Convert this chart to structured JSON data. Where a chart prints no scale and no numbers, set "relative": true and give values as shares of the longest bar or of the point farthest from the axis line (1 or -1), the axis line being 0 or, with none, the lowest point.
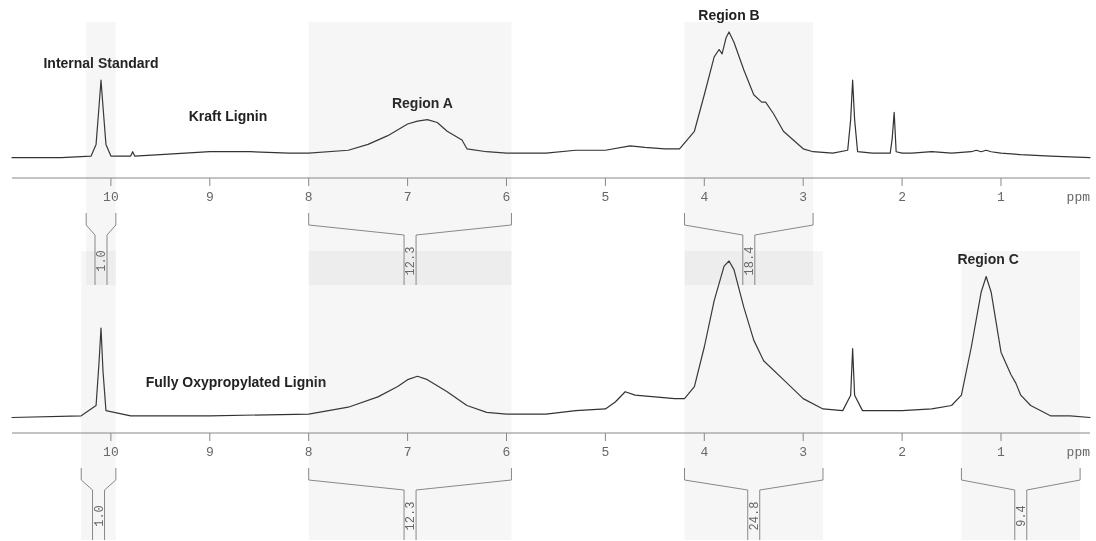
{
  "chart_data": [
    {
      "type": "line",
      "title": "Kraft Lignin",
      "xlabel": "ppm",
      "relative": true,
      "xlim": [
        11.0,
        0.1
      ],
      "xticks": [
        10,
        9,
        8,
        7,
        6,
        5,
        4,
        3,
        2,
        1
      ],
      "x": [
        11.0,
        10.5,
        10.2,
        10.15,
        10.12,
        10.1,
        10.08,
        10.05,
        10.0,
        9.8,
        9.78,
        9.76,
        9.5,
        9.0,
        8.6,
        8.2,
        8.0,
        7.6,
        7.4,
        7.2,
        7.0,
        6.9,
        6.8,
        6.7,
        6.6,
        6.45,
        6.4,
        6.2,
        6.0,
        5.6,
        5.3,
        5.0,
        4.75,
        4.6,
        4.4,
        4.25,
        4.1,
        4.0,
        3.9,
        3.85,
        3.82,
        3.78,
        3.75,
        3.7,
        3.6,
        3.5,
        3.42,
        3.38,
        3.3,
        3.2,
        3.0,
        2.9,
        2.7,
        2.55,
        2.52,
        2.5,
        2.48,
        2.45,
        2.3,
        2.12,
        2.1,
        2.08,
        2.06,
        2.0,
        1.9,
        1.7,
        1.5,
        1.3,
        1.25,
        1.2,
        1.15,
        1.1,
        1.0,
        0.8,
        0.5,
        0.1
      ],
      "series": [
        {
          "color": "#333333",
          "values": [
            0.14,
            0.14,
            0.15,
            0.23,
            0.49,
            0.67,
            0.49,
            0.23,
            0.15,
            0.15,
            0.18,
            0.15,
            0.16,
            0.18,
            0.18,
            0.17,
            0.17,
            0.19,
            0.23,
            0.29,
            0.37,
            0.39,
            0.4,
            0.38,
            0.32,
            0.26,
            0.2,
            0.18,
            0.17,
            0.17,
            0.19,
            0.19,
            0.22,
            0.21,
            0.2,
            0.2,
            0.32,
            0.57,
            0.83,
            0.88,
            0.85,
            0.96,
            1.0,
            0.93,
            0.74,
            0.57,
            0.52,
            0.52,
            0.44,
            0.32,
            0.2,
            0.18,
            0.17,
            0.19,
            0.4,
            0.67,
            0.4,
            0.18,
            0.17,
            0.17,
            0.27,
            0.45,
            0.18,
            0.17,
            0.17,
            0.18,
            0.17,
            0.18,
            0.19,
            0.18,
            0.19,
            0.18,
            0.17,
            0.16,
            0.15,
            0.14
          ]
        }
      ],
      "annotations": [
        {
          "text": "Internal Standard",
          "x": 10.1,
          "y": 0.67
        },
        {
          "text": "Region A",
          "x": 6.85,
          "y": 0.4
        },
        {
          "text": "Region B",
          "x": 3.75,
          "y": 1.0
        }
      ],
      "bands": [
        {
          "axis": "x",
          "from": 10.25,
          "to": 9.95,
          "label": "1.0",
          "color": "#888888"
        },
        {
          "axis": "x",
          "from": 8.0,
          "to": 5.95,
          "label": "12.3",
          "color": "#888888"
        },
        {
          "axis": "x",
          "from": 4.2,
          "to": 2.9,
          "label": "18.4",
          "color": "#888888"
        }
      ]
    },
    {
      "type": "line",
      "title": "Fully Oxypropylated Lignin",
      "xlabel": "ppm",
      "relative": true,
      "xlim": [
        11.0,
        0.1
      ],
      "xticks": [
        10,
        9,
        8,
        7,
        6,
        5,
        4,
        3,
        2,
        1
      ],
      "x": [
        11.0,
        10.3,
        10.15,
        10.12,
        10.1,
        10.08,
        10.05,
        9.8,
        9.0,
        8.0,
        7.6,
        7.3,
        7.1,
        7.0,
        6.9,
        6.8,
        6.6,
        6.4,
        6.2,
        6.0,
        5.6,
        5.3,
        5.0,
        4.9,
        4.8,
        4.7,
        4.5,
        4.3,
        4.2,
        4.1,
        4.0,
        3.9,
        3.8,
        3.75,
        3.7,
        3.6,
        3.5,
        3.4,
        3.2,
        3.0,
        2.8,
        2.6,
        2.52,
        2.5,
        2.48,
        2.4,
        2.0,
        1.7,
        1.5,
        1.4,
        1.3,
        1.2,
        1.15,
        1.1,
        1.0,
        0.9,
        0.85,
        0.8,
        0.7,
        0.5,
        0.3,
        0.1
      ],
      "series": [
        {
          "color": "#333333",
          "values": [
            0.09,
            0.1,
            0.16,
            0.41,
            0.61,
            0.36,
            0.13,
            0.1,
            0.1,
            0.11,
            0.15,
            0.21,
            0.27,
            0.31,
            0.33,
            0.31,
            0.24,
            0.16,
            0.12,
            0.11,
            0.11,
            0.13,
            0.14,
            0.18,
            0.24,
            0.22,
            0.21,
            0.2,
            0.2,
            0.27,
            0.5,
            0.77,
            0.97,
            1.0,
            0.95,
            0.73,
            0.54,
            0.42,
            0.31,
            0.2,
            0.14,
            0.13,
            0.22,
            0.49,
            0.22,
            0.13,
            0.13,
            0.14,
            0.16,
            0.22,
            0.5,
            0.82,
            0.91,
            0.82,
            0.47,
            0.34,
            0.29,
            0.22,
            0.16,
            0.1,
            0.1,
            0.09
          ]
        }
      ],
      "annotations": [
        {
          "text": "Region C",
          "x": 1.13,
          "y": 0.91
        }
      ],
      "bands": [
        {
          "axis": "x",
          "from": 10.3,
          "to": 9.95,
          "label": "1.0",
          "color": "#888888"
        },
        {
          "axis": "x",
          "from": 8.0,
          "to": 5.95,
          "label": "12.3",
          "color": "#888888"
        },
        {
          "axis": "x",
          "from": 4.2,
          "to": 2.8,
          "label": "24.8",
          "color": "#888888"
        },
        {
          "axis": "x",
          "from": 1.4,
          "to": 0.2,
          "label": "9.4",
          "color": "#888888"
        }
      ]
    }
  ]
}
